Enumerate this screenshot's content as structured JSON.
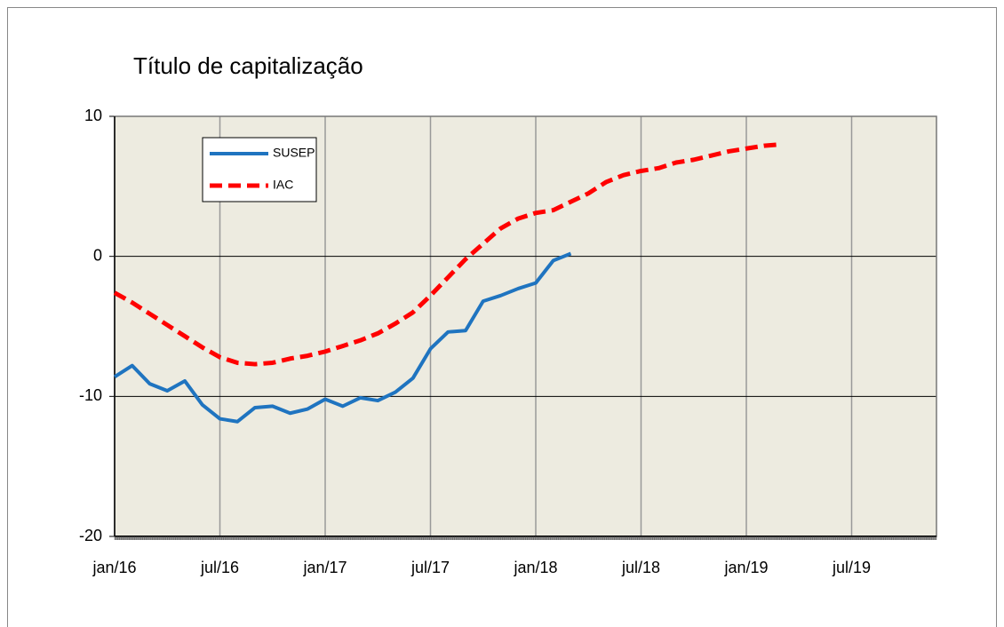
{
  "chart_data": {
    "type": "line",
    "title": "Título de capitalização",
    "categories": [
      "jan/16",
      null,
      null,
      null,
      null,
      null,
      "jul/16",
      null,
      null,
      null,
      null,
      null,
      "jan/17",
      null,
      null,
      null,
      null,
      null,
      "jul/17",
      null,
      null,
      null,
      null,
      null,
      "jan/18",
      null,
      null,
      null,
      null,
      null,
      "jul/18",
      null,
      null,
      null,
      null,
      null,
      "jan/19",
      null,
      null,
      null,
      null,
      null,
      "jul/19",
      null,
      null,
      null,
      null,
      null
    ],
    "series": [
      {
        "name": "SUSEP",
        "color": "#1f74c0",
        "dash": false,
        "values": [
          -8.6,
          -7.8,
          -9.1,
          -9.6,
          -8.9,
          -10.6,
          -11.6,
          -11.8,
          -10.8,
          -10.7,
          -11.2,
          -10.9,
          -10.2,
          -10.7,
          -10.1,
          -10.3,
          -9.7,
          -8.7,
          -6.6,
          -5.4,
          -5.3,
          -3.2,
          -2.8,
          -2.3,
          -1.9,
          -0.3,
          0.2,
          null,
          null,
          null,
          null,
          null,
          null,
          null,
          null,
          null,
          null,
          null,
          null,
          null,
          null,
          null,
          null,
          null,
          null,
          null,
          null,
          null
        ]
      },
      {
        "name": "IAC",
        "color": "#ff0000",
        "dash": true,
        "values": [
          -2.6,
          -3.3,
          -4.1,
          -4.9,
          -5.7,
          -6.5,
          -7.2,
          -7.6,
          -7.7,
          -7.6,
          -7.3,
          -7.1,
          -6.8,
          -6.4,
          -6.0,
          -5.5,
          -4.8,
          -4.0,
          -2.8,
          -1.5,
          -0.2,
          0.9,
          2.0,
          2.7,
          3.1,
          3.3,
          3.9,
          4.5,
          5.3,
          5.8,
          6.1,
          6.3,
          6.7,
          6.9,
          7.2,
          7.5,
          7.7,
          7.9,
          8.0,
          null,
          null,
          null,
          null,
          null,
          null,
          null,
          null,
          null
        ]
      }
    ],
    "ylim": [
      -20,
      10
    ],
    "yticks": [
      -20,
      -10,
      0,
      10
    ],
    "grid": true,
    "legend": "upper left"
  }
}
